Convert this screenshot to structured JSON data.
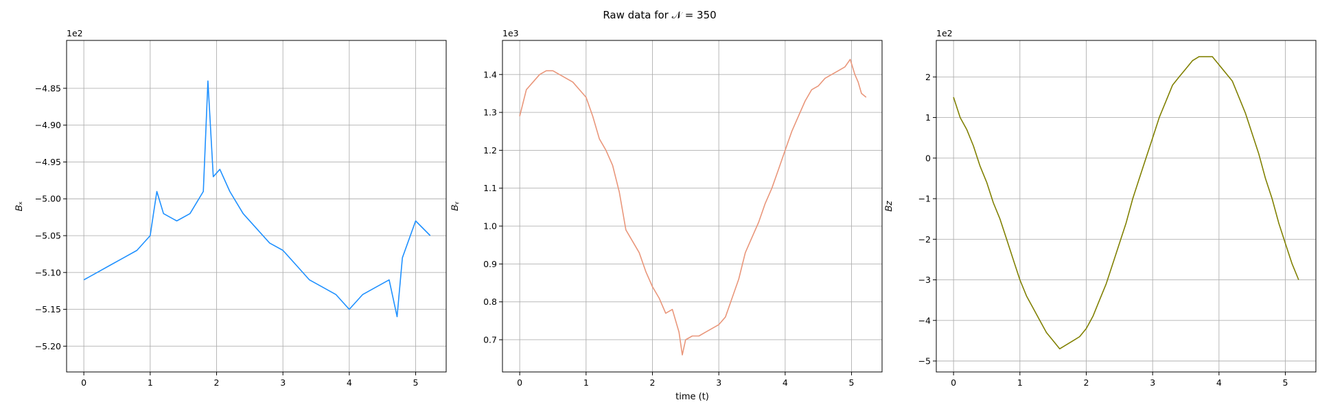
{
  "figure": {
    "title": "Raw data for 𝒩 = 350"
  },
  "chart_data": [
    {
      "type": "line",
      "title": "",
      "xlabel": "",
      "ylabel": "𝐵ₓ",
      "offset_label": "1e2",
      "xlim": [
        -0.26,
        5.46
      ],
      "ylim": [
        -5.235,
        -4.785
      ],
      "xticks": [
        0,
        1,
        2,
        3,
        4,
        5
      ],
      "xtick_labels": [
        "0",
        "1",
        "2",
        "3",
        "4",
        "5"
      ],
      "yticks": [
        -5.2,
        -5.15,
        -5.1,
        -5.05,
        -5.0,
        -4.95,
        -4.9,
        -4.85
      ],
      "ytick_labels": [
        "−5.20",
        "−5.15",
        "−5.10",
        "−5.05",
        "−5.00",
        "−4.95",
        "−4.90",
        "−4.85"
      ],
      "grid": true,
      "series": [
        {
          "color": "#1e90ff",
          "x": [
            0.0,
            0.2,
            0.4,
            0.6,
            0.8,
            1.0,
            1.05,
            1.1,
            1.2,
            1.4,
            1.6,
            1.8,
            1.87,
            1.95,
            2.05,
            2.2,
            2.4,
            2.6,
            2.8,
            3.0,
            3.2,
            3.4,
            3.6,
            3.8,
            4.0,
            4.2,
            4.4,
            4.6,
            4.72,
            4.8,
            5.0,
            5.22
          ],
          "y": [
            -5.11,
            -5.1,
            -5.09,
            -5.08,
            -5.07,
            -5.05,
            -5.02,
            -4.99,
            -5.02,
            -5.03,
            -5.02,
            -4.99,
            -4.84,
            -4.97,
            -4.96,
            -4.99,
            -5.02,
            -5.04,
            -5.06,
            -5.07,
            -5.09,
            -5.11,
            -5.12,
            -5.13,
            -5.15,
            -5.13,
            -5.12,
            -5.11,
            -5.16,
            -5.08,
            -5.03,
            -5.05
          ]
        }
      ]
    },
    {
      "type": "line",
      "title": "",
      "xlabel": "time (t)",
      "ylabel": "𝐵ᵧ",
      "offset_label": "1e3",
      "xlim": [
        -0.26,
        5.46
      ],
      "ylim": [
        0.615,
        1.49
      ],
      "xticks": [
        0,
        1,
        2,
        3,
        4,
        5
      ],
      "xtick_labels": [
        "0",
        "1",
        "2",
        "3",
        "4",
        "5"
      ],
      "yticks": [
        0.7,
        0.8,
        0.9,
        1.0,
        1.1,
        1.2,
        1.3,
        1.4
      ],
      "ytick_labels": [
        "0.7",
        "0.8",
        "0.9",
        "1.0",
        "1.1",
        "1.2",
        "1.3",
        "1.4"
      ],
      "grid": true,
      "series": [
        {
          "color": "#e9967a",
          "x": [
            0.0,
            0.1,
            0.2,
            0.3,
            0.4,
            0.5,
            0.6,
            0.7,
            0.8,
            0.9,
            1.0,
            1.1,
            1.2,
            1.3,
            1.4,
            1.5,
            1.6,
            1.7,
            1.8,
            1.9,
            2.0,
            2.1,
            2.2,
            2.3,
            2.4,
            2.45,
            2.5,
            2.6,
            2.7,
            2.8,
            2.9,
            3.0,
            3.1,
            3.2,
            3.3,
            3.4,
            3.5,
            3.6,
            3.7,
            3.8,
            3.9,
            4.0,
            4.1,
            4.2,
            4.3,
            4.4,
            4.5,
            4.6,
            4.7,
            4.8,
            4.9,
            4.98,
            5.05,
            5.1,
            5.15,
            5.22
          ],
          "y": [
            1.29,
            1.36,
            1.38,
            1.4,
            1.41,
            1.41,
            1.4,
            1.39,
            1.38,
            1.36,
            1.34,
            1.29,
            1.23,
            1.2,
            1.16,
            1.09,
            0.99,
            0.96,
            0.93,
            0.88,
            0.84,
            0.81,
            0.77,
            0.78,
            0.72,
            0.66,
            0.7,
            0.71,
            0.71,
            0.72,
            0.73,
            0.74,
            0.76,
            0.81,
            0.86,
            0.93,
            0.97,
            1.01,
            1.06,
            1.1,
            1.15,
            1.2,
            1.25,
            1.29,
            1.33,
            1.36,
            1.37,
            1.39,
            1.4,
            1.41,
            1.42,
            1.44,
            1.4,
            1.38,
            1.35,
            1.34
          ]
        }
      ]
    },
    {
      "type": "line",
      "title": "",
      "xlabel": "",
      "ylabel": "𝐵𝑧",
      "offset_label": "1e2",
      "xlim": [
        -0.26,
        5.46
      ],
      "ylim": [
        -5.27,
        2.9
      ],
      "xticks": [
        0,
        1,
        2,
        3,
        4,
        5
      ],
      "xtick_labels": [
        "0",
        "1",
        "2",
        "3",
        "4",
        "5"
      ],
      "yticks": [
        -5,
        -4,
        -3,
        -2,
        -1,
        0,
        1,
        2
      ],
      "ytick_labels": [
        "−5",
        "−4",
        "−3",
        "−2",
        "−1",
        "0",
        "1",
        "2"
      ],
      "grid": true,
      "series": [
        {
          "color": "#808000",
          "x": [
            0.0,
            0.1,
            0.2,
            0.3,
            0.4,
            0.5,
            0.6,
            0.7,
            0.8,
            0.9,
            1.0,
            1.1,
            1.2,
            1.3,
            1.4,
            1.5,
            1.6,
            1.7,
            1.8,
            1.9,
            2.0,
            2.1,
            2.2,
            2.3,
            2.4,
            2.5,
            2.6,
            2.7,
            2.8,
            2.9,
            3.0,
            3.1,
            3.2,
            3.3,
            3.4,
            3.5,
            3.6,
            3.7,
            3.8,
            3.9,
            4.0,
            4.1,
            4.2,
            4.3,
            4.4,
            4.5,
            4.6,
            4.7,
            4.8,
            4.9,
            5.0,
            5.1,
            5.2
          ],
          "y": [
            1.5,
            1.0,
            0.7,
            0.3,
            -0.2,
            -0.6,
            -1.1,
            -1.5,
            -2.0,
            -2.5,
            -3.0,
            -3.4,
            -3.7,
            -4.0,
            -4.3,
            -4.5,
            -4.7,
            -4.6,
            -4.5,
            -4.4,
            -4.2,
            -3.9,
            -3.5,
            -3.1,
            -2.6,
            -2.1,
            -1.6,
            -1.0,
            -0.5,
            0.0,
            0.5,
            1.0,
            1.4,
            1.8,
            2.0,
            2.2,
            2.4,
            2.5,
            2.5,
            2.5,
            2.3,
            2.1,
            1.9,
            1.5,
            1.1,
            0.6,
            0.1,
            -0.5,
            -1.0,
            -1.6,
            -2.1,
            -2.6,
            -3.0
          ]
        }
      ]
    }
  ]
}
